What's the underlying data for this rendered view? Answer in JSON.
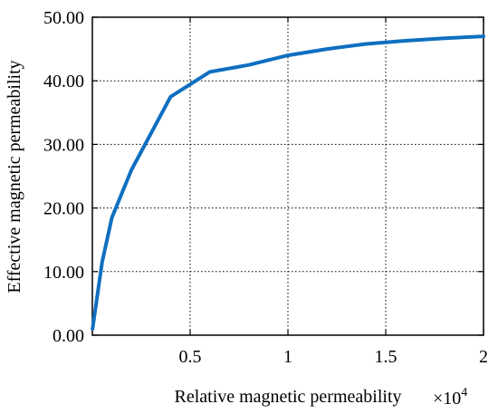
{
  "chart_data": {
    "type": "line",
    "xlabel": "Relative magnetic permeability",
    "ylabel": "Effective magnetic permeability",
    "x_multiplier_base": "×10",
    "x_multiplier_exp": "4",
    "xlim": [
      0,
      2
    ],
    "ylim": [
      0,
      50
    ],
    "x_ticks": [
      0.5,
      1,
      1.5,
      2
    ],
    "x_tick_labels": [
      "0.5",
      "1",
      "1.5",
      "2"
    ],
    "y_ticks": [
      0,
      10,
      20,
      30,
      40,
      50
    ],
    "y_tick_labels": [
      "0.00",
      "10.00",
      "20.00",
      "30.00",
      "40.00",
      "50.00"
    ],
    "grid": true,
    "series": [
      {
        "color": "#0f6fc0",
        "x": [
          0.001,
          0.05,
          0.1,
          0.2,
          0.4,
          0.6,
          0.8,
          1.0,
          1.2,
          1.4,
          1.6,
          1.8,
          2.0
        ],
        "y": [
          1.0,
          11.5,
          18.5,
          26.0,
          37.5,
          41.4,
          42.5,
          44.0,
          45.0,
          45.8,
          46.3,
          46.7,
          47.0
        ]
      }
    ]
  }
}
